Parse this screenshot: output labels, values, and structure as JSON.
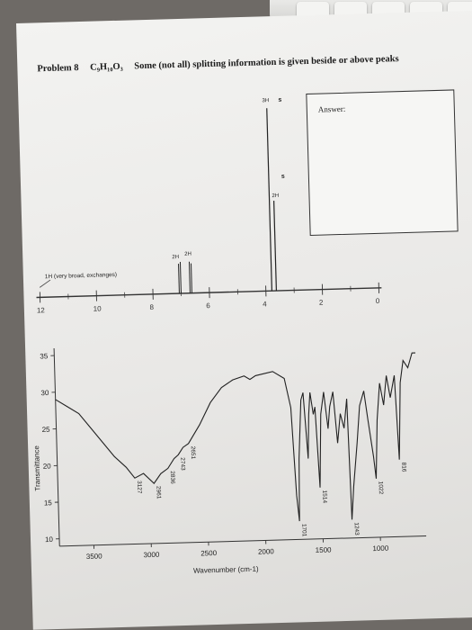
{
  "problem": {
    "number_label": "Problem 8",
    "formula": "C₉H₁₀O₃",
    "instruction": "Some (not all) splitting information is given beside or above peaks"
  },
  "answer": {
    "label": "Answer:"
  },
  "nmr": {
    "x_ticks": [
      "12",
      "10",
      "8",
      "6",
      "4",
      "2",
      "0"
    ],
    "peak_labels": {
      "broad_oh": "1H (very broad, exchanges)",
      "aromatic_left": "2H",
      "aromatic_right": "2H",
      "ch2": "2H",
      "ch2_mult": "s",
      "ch3": "3H",
      "ch3_mult": "s"
    }
  },
  "chart_data": {
    "type": "line",
    "xlabel": "Wavenumber (cm-1)",
    "ylabel": "Transmittance",
    "xlim": [
      3800,
      600
    ],
    "ylim": [
      9,
      36
    ],
    "x_ticks": [
      3500,
      3000,
      2500,
      2000,
      1500,
      1000
    ],
    "y_ticks": [
      10,
      15,
      20,
      25,
      30,
      35
    ],
    "series": [
      {
        "values": [
          [
            3800,
            29
          ],
          [
            3700,
            28
          ],
          [
            3600,
            27
          ],
          [
            3500,
            25
          ],
          [
            3400,
            23
          ],
          [
            3300,
            21
          ],
          [
            3200,
            19.5
          ],
          [
            3127,
            18
          ],
          [
            3050,
            18.6
          ],
          [
            2961,
            17.2
          ],
          [
            2900,
            18.5
          ],
          [
            2836,
            19.2
          ],
          [
            2780,
            20.5
          ],
          [
            2743,
            21
          ],
          [
            2700,
            22
          ],
          [
            2651,
            22.5
          ],
          [
            2550,
            25
          ],
          [
            2450,
            28
          ],
          [
            2350,
            30
          ],
          [
            2250,
            31
          ],
          [
            2150,
            31.5
          ],
          [
            2100,
            31
          ],
          [
            2050,
            31.5
          ],
          [
            1900,
            32
          ],
          [
            1800,
            31
          ],
          [
            1750,
            27
          ],
          [
            1720,
            15
          ],
          [
            1701,
            11.5
          ],
          [
            1690,
            20
          ],
          [
            1660,
            28
          ],
          [
            1640,
            29
          ],
          [
            1610,
            20
          ],
          [
            1595,
            26
          ],
          [
            1580,
            29
          ],
          [
            1555,
            26
          ],
          [
            1540,
            27
          ],
          [
            1514,
            16
          ],
          [
            1490,
            26
          ],
          [
            1460,
            29
          ],
          [
            1430,
            24
          ],
          [
            1410,
            27
          ],
          [
            1380,
            29
          ],
          [
            1350,
            22
          ],
          [
            1320,
            26
          ],
          [
            1290,
            24
          ],
          [
            1260,
            28
          ],
          [
            1243,
            11.5
          ],
          [
            1220,
            16
          ],
          [
            1180,
            22
          ],
          [
            1150,
            27
          ],
          [
            1110,
            29
          ],
          [
            1080,
            25
          ],
          [
            1040,
            20
          ],
          [
            1022,
            17
          ],
          [
            1000,
            25
          ],
          [
            970,
            30
          ],
          [
            940,
            27
          ],
          [
            910,
            31
          ],
          [
            880,
            28
          ],
          [
            840,
            31
          ],
          [
            816,
            19.5
          ],
          [
            790,
            30
          ],
          [
            760,
            33
          ],
          [
            720,
            32
          ],
          [
            680,
            34
          ],
          [
            650,
            34
          ]
        ]
      }
    ],
    "peak_labels": [
      {
        "x": 3127,
        "label": "3127"
      },
      {
        "x": 2961,
        "label": "2961"
      },
      {
        "x": 2836,
        "label": "2836"
      },
      {
        "x": 2743,
        "label": "2743"
      },
      {
        "x": 2651,
        "label": "2651"
      },
      {
        "x": 1701,
        "label": "1701"
      },
      {
        "x": 1514,
        "label": "1514"
      },
      {
        "x": 1243,
        "label": "1243"
      },
      {
        "x": 1022,
        "label": "1022"
      },
      {
        "x": 816,
        "label": "816"
      }
    ]
  }
}
